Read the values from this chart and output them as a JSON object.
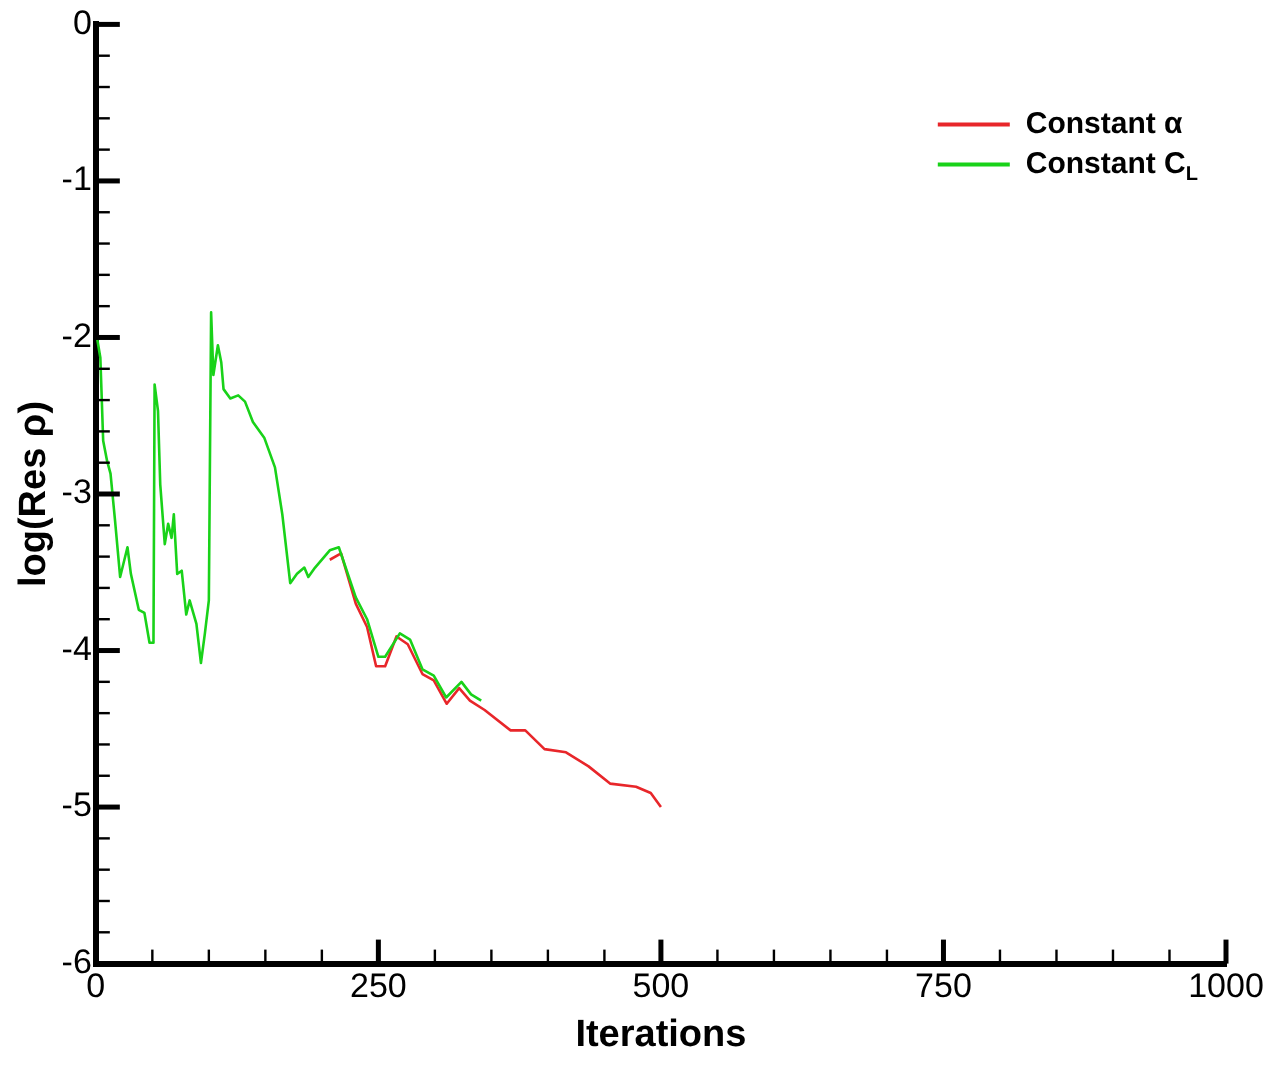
{
  "chart_data": {
    "type": "line",
    "xlabel": "Iterations",
    "ylabel": "log(Res ρ)",
    "legend": "top right",
    "grid": false,
    "marker": "none",
    "line_style": "solid",
    "xlim": [
      0,
      1000
    ],
    "ylim": [
      -6,
      0
    ],
    "xticks": [
      0,
      {
        "value": 50,
        "label": null
      },
      {
        "value": 100,
        "label": null
      },
      {
        "value": 150,
        "label": null
      },
      {
        "value": 200,
        "label": null
      },
      250,
      {
        "value": 300,
        "label": null
      },
      {
        "value": 350,
        "label": null
      },
      {
        "value": 400,
        "label": null
      },
      {
        "value": 450,
        "label": null
      },
      500,
      {
        "value": 550,
        "label": null
      },
      {
        "value": 600,
        "label": null
      },
      {
        "value": 650,
        "label": null
      },
      {
        "value": 700,
        "label": null
      },
      750,
      {
        "value": 800,
        "label": null
      },
      {
        "value": 850,
        "label": null
      },
      {
        "value": 900,
        "label": null
      },
      {
        "value": 950,
        "label": null
      },
      1000
    ],
    "yticks": [
      -6,
      {
        "value": -5.8,
        "label": null
      },
      {
        "value": -5.6,
        "label": null
      },
      {
        "value": -5.4,
        "label": null
      },
      {
        "value": -5.2,
        "label": null
      },
      -5,
      {
        "value": -4.8,
        "label": null
      },
      {
        "value": -4.6,
        "label": null
      },
      {
        "value": -4.4,
        "label": null
      },
      {
        "value": -4.2,
        "label": null
      },
      -4,
      {
        "value": -3.8,
        "label": null
      },
      {
        "value": -3.6,
        "label": null
      },
      {
        "value": -3.4,
        "label": null
      },
      {
        "value": -3.2,
        "label": null
      },
      -3,
      {
        "value": -2.8,
        "label": null
      },
      {
        "value": -2.6,
        "label": null
      },
      {
        "value": -2.4,
        "label": null
      },
      {
        "value": -2.2,
        "label": null
      },
      -2,
      {
        "value": -1.8,
        "label": null
      },
      {
        "value": -1.6,
        "label": null
      },
      {
        "value": -1.4,
        "label": null
      },
      {
        "value": -1.2,
        "label": null
      },
      -1,
      {
        "value": -0.8,
        "label": null
      },
      {
        "value": -0.6,
        "label": null
      },
      {
        "value": -0.4,
        "label": null
      },
      {
        "value": -0.2,
        "label": null
      },
      0
    ],
    "series": [
      {
        "name": "Constant α",
        "color": "#e8262a",
        "x": [
          207,
          217,
          230,
          240,
          248,
          256,
          266,
          276,
          289,
          299,
          310.5,
          321.5,
          331,
          344,
          367,
          380,
          397,
          416,
          436,
          455,
          478,
          491,
          500
        ],
        "values": [
          -3.42,
          -3.38,
          -3.7,
          -3.85,
          -4.1,
          -4.1,
          -3.91,
          -3.96,
          -4.15,
          -4.19,
          -4.34,
          -4.24,
          -4.32,
          -4.38,
          -4.51,
          -4.51,
          -4.63,
          -4.65,
          -4.74,
          -4.85,
          -4.87,
          -4.91,
          -5.0
        ]
      },
      {
        "name": "Constant C$_{L}$",
        "color": "#19d219",
        "x": [
          1,
          4,
          6.5,
          10,
          13,
          17,
          21.5,
          28,
          31,
          38,
          43,
          47.5,
          51,
          52,
          55,
          57,
          61,
          64,
          67,
          69,
          72,
          76,
          80,
          83,
          89,
          93,
          96.5,
          100,
          102,
          104,
          108,
          111,
          113,
          119,
          126,
          132,
          139,
          149,
          158.5,
          165,
          172,
          178,
          184.5,
          188,
          194,
          207,
          215,
          230,
          240,
          250,
          256,
          269,
          278,
          289,
          299,
          310,
          323.5,
          332,
          341
        ],
        "values": [
          -2.0,
          -2.13,
          -2.66,
          -2.79,
          -2.87,
          -3.17,
          -3.53,
          -3.34,
          -3.51,
          -3.74,
          -3.76,
          -3.95,
          -3.95,
          -2.3,
          -2.47,
          -2.94,
          -3.32,
          -3.19,
          -3.28,
          -3.13,
          -3.51,
          -3.49,
          -3.77,
          -3.68,
          -3.83,
          -4.08,
          -3.89,
          -3.68,
          -1.84,
          -2.24,
          -2.05,
          -2.16,
          -2.33,
          -2.39,
          -2.37,
          -2.41,
          -2.54,
          -2.64,
          -2.83,
          -3.13,
          -3.57,
          -3.51,
          -3.47,
          -3.53,
          -3.47,
          -3.36,
          -3.34,
          -3.66,
          -3.8,
          -4.04,
          -4.04,
          -3.89,
          -3.93,
          -4.12,
          -4.16,
          -4.3,
          -4.2,
          -4.28,
          -4.32
        ]
      }
    ]
  }
}
